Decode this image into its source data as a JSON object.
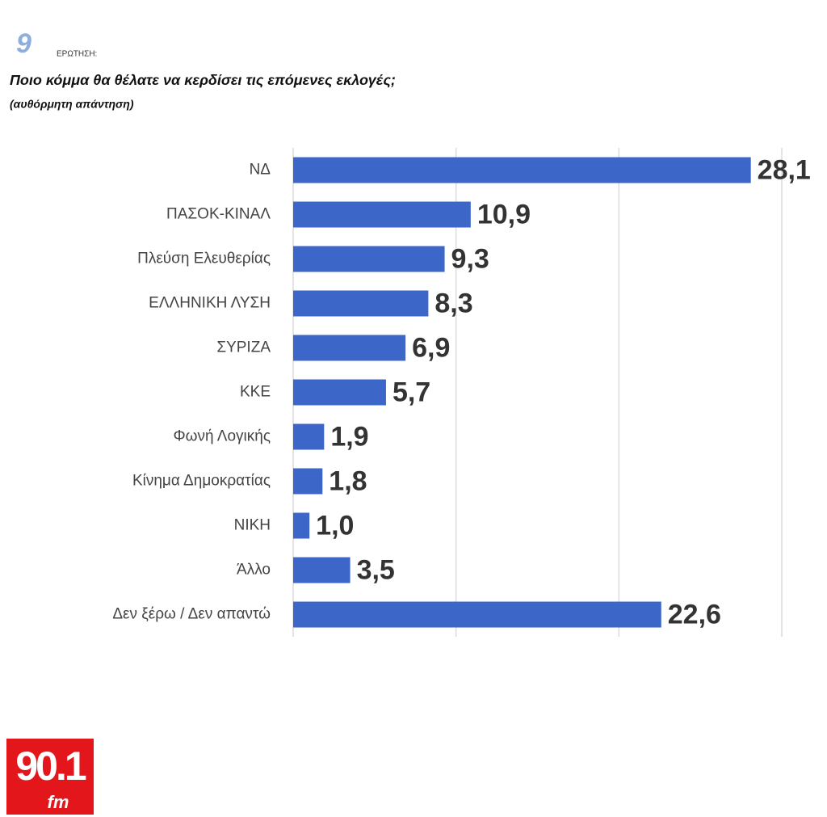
{
  "question_number": "9",
  "question_label": "ΕΡΩΤΗΣΗ:",
  "logo": {
    "main": "90.1",
    "sub": "fm"
  },
  "chart_data": {
    "type": "hbar",
    "title": "Ποιο κόμμα θα θέλατε να κερδίσει τις επόμενες εκλογές;",
    "subtitle": "(αυθόρμητη απάντηση)",
    "categories": [
      "ΝΔ",
      "ΠΑΣΟΚ-ΚΙΝΑΛ",
      "Πλεύση Ελευθερίας",
      "ΕΛΛΗΝΙΚΗ ΛΥΣΗ",
      "ΣΥΡΙΖΑ",
      "ΚΚΕ",
      "Φωνή Λογικής",
      "Κίνημα Δημοκρατίας",
      "ΝΙΚΗ",
      "Άλλο",
      "Δεν ξέρω / Δεν απαντώ"
    ],
    "values": [
      28.1,
      10.9,
      9.3,
      8.3,
      6.9,
      5.7,
      1.9,
      1.8,
      1.0,
      3.5,
      22.6
    ],
    "value_labels": [
      "28,1",
      "10,9",
      "9,3",
      "8,3",
      "6,9",
      "5,7",
      "1,9",
      "1,8",
      "1,0",
      "3,5",
      "22,6"
    ],
    "color": "#3d66c9",
    "xlim": [
      0,
      30
    ],
    "xticks": [
      0,
      10,
      20,
      30
    ],
    "grid": true
  }
}
